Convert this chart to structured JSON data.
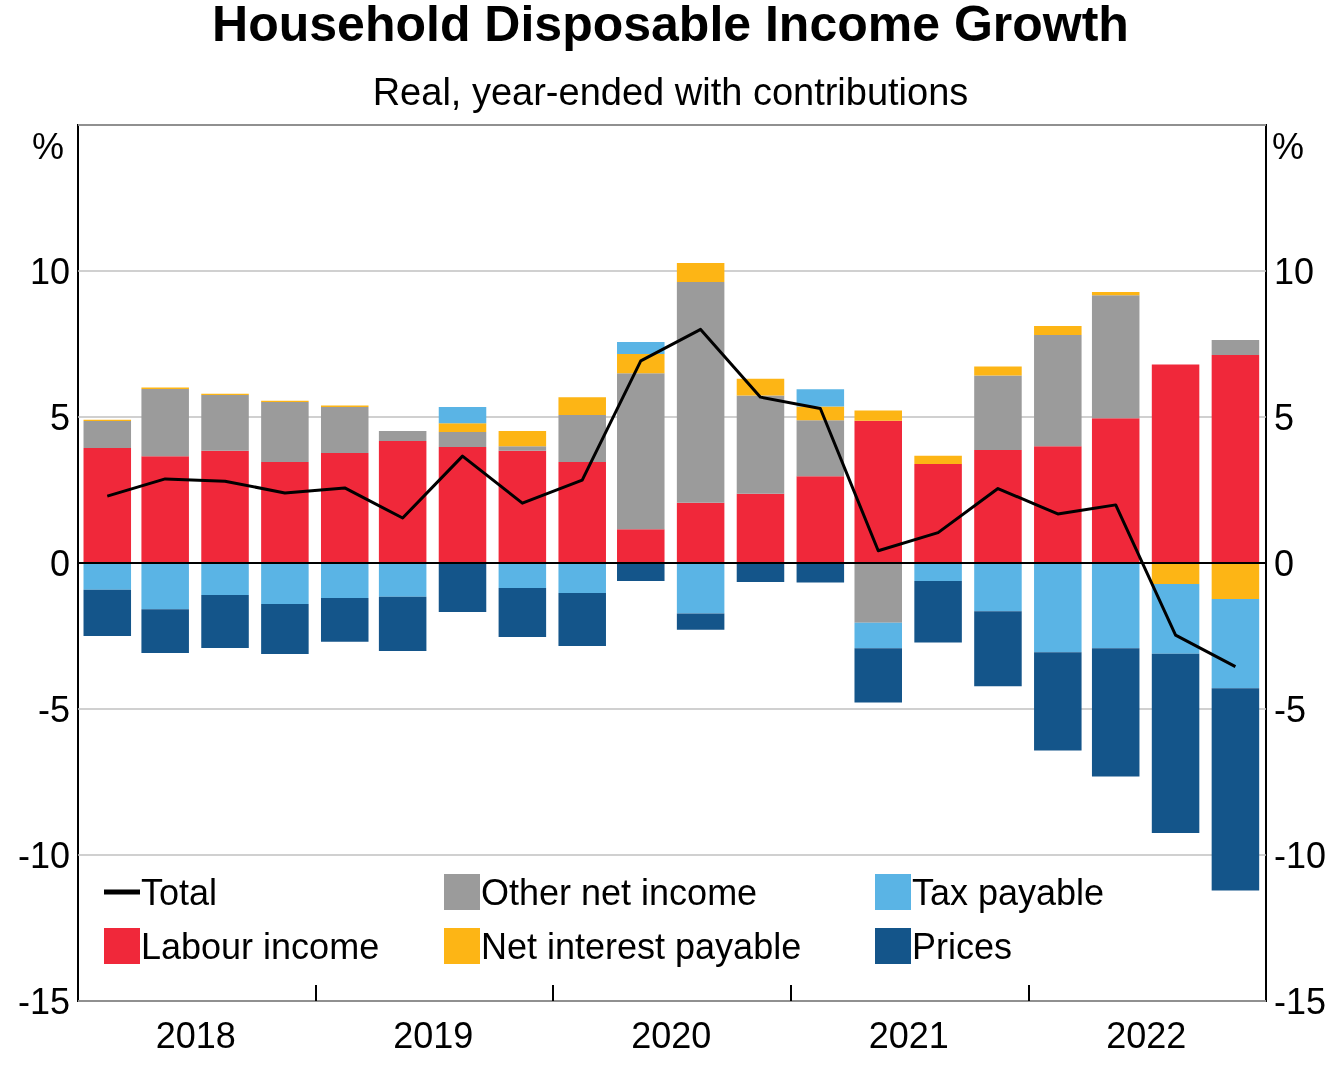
{
  "chart_data": {
    "type": "bar",
    "title": "Household Disposable Income Growth",
    "subtitle": "Real, year-ended with contributions",
    "ylabel": "%",
    "y2label": "%",
    "x": [
      "2018-02-15",
      "2018-05-15",
      "2018-08-15",
      "2018-11-15",
      "2019-02-15",
      "2019-05-15",
      "2019-08-15",
      "2019-11-15",
      "2020-02-15",
      "2020-05-15",
      "2020-08-15",
      "2020-11-15",
      "2021-02-15",
      "2021-05-15",
      "2021-08-15",
      "2021-11-15",
      "2022-02-15",
      "2022-05-15",
      "2022-08-15",
      "2022-11-15"
    ],
    "xlim": [
      "2018-01-01",
      "2023-01-01"
    ],
    "xticks": [
      {
        "value": "2018-07-01",
        "label": "2018"
      },
      {
        "value": "2019-01-01",
        "label": null
      },
      {
        "value": "2019-07-01",
        "label": "2019"
      },
      {
        "value": "2020-01-01",
        "label": null
      },
      {
        "value": "2020-07-01",
        "label": "2020"
      },
      {
        "value": "2021-01-01",
        "label": null
      },
      {
        "value": "2021-07-01",
        "label": "2021"
      },
      {
        "value": "2022-01-01",
        "label": null
      },
      {
        "value": "2022-07-01",
        "label": "2022"
      }
    ],
    "stacked": true,
    "series": [
      {
        "name": "Total",
        "type": "line",
        "color": "#000000",
        "values": [
          2.29,
          2.88,
          2.8,
          2.4,
          2.57,
          1.54,
          3.66,
          2.05,
          2.84,
          6.92,
          8.0,
          5.68,
          5.29,
          0.42,
          1.04,
          2.55,
          1.68,
          1.99,
          -2.47,
          -3.55
        ]
      },
      {
        "name": "Labour income",
        "color": "#f0283a",
        "values": [
          3.94,
          3.66,
          3.84,
          3.46,
          3.77,
          4.18,
          3.97,
          3.84,
          3.46,
          1.16,
          2.06,
          2.37,
          2.97,
          4.87,
          3.39,
          3.87,
          4.0,
          4.96,
          6.8,
          7.12
        ]
      },
      {
        "name": "Other net income",
        "color": "#9b9b9b",
        "values": [
          0.92,
          2.3,
          1.91,
          2.05,
          1.57,
          0.34,
          0.52,
          0.16,
          1.61,
          5.34,
          7.56,
          3.37,
          1.92,
          -2.05,
          null,
          2.55,
          3.81,
          4.21,
          null,
          0.52
        ]
      },
      {
        "name": "Net interest payable",
        "color": "#fdb515",
        "values": [
          0.05,
          0.05,
          0.05,
          0.05,
          0.05,
          null,
          0.3,
          0.52,
          0.61,
          0.66,
          0.65,
          0.57,
          0.47,
          0.35,
          0.28,
          0.31,
          0.31,
          0.11,
          -0.72,
          -1.23
        ]
      },
      {
        "name": "Tax payable",
        "color": "#5ab4e5",
        "values": [
          -0.92,
          -1.58,
          -1.1,
          -1.4,
          -1.2,
          -1.16,
          0.55,
          -0.86,
          -1.03,
          0.41,
          -1.73,
          null,
          0.59,
          -0.87,
          -0.62,
          -1.65,
          -3.06,
          -2.92,
          -2.39,
          -3.06
        ]
      },
      {
        "name": "Prices",
        "color": "#14558a",
        "values": [
          -1.58,
          -1.5,
          -1.81,
          -1.72,
          -1.5,
          -1.85,
          -1.68,
          -1.67,
          -1.81,
          -0.62,
          -0.56,
          -0.65,
          -0.67,
          -1.86,
          -2.1,
          -2.57,
          -3.36,
          -4.39,
          -6.14,
          -6.93
        ]
      }
    ],
    "ylim": [
      -15,
      15
    ],
    "yticks": [
      -15,
      -10,
      -5,
      0,
      5,
      10
    ],
    "y2lim": [
      -15,
      15
    ],
    "y2ticks": [
      -15,
      -10,
      -5,
      0,
      5,
      10
    ],
    "ref_lines": [
      {
        "axis": "y",
        "value": 0,
        "color": "#000000"
      }
    ],
    "grid": "y",
    "legend": "bottom left",
    "marker": "none",
    "line_style": "solid"
  }
}
